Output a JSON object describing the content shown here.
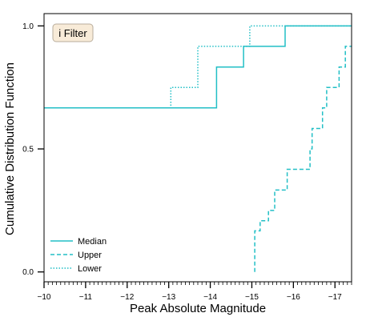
{
  "chart_data": {
    "type": "line",
    "step": true,
    "xlabel": "Peak Absolute Magnitude",
    "ylabel": "Cumulative Distribution Function",
    "xlim": [
      -10,
      -17.4
    ],
    "ylim": [
      -0.04,
      1.05
    ],
    "x_inverted": true,
    "xticks": [
      -10,
      -11,
      -12,
      -13,
      -14,
      -15,
      -16,
      -17
    ],
    "xtick_labels": [
      "−10",
      "−11",
      "−12",
      "−13",
      "−14",
      "−15",
      "−16",
      "−17"
    ],
    "yticks": [
      0.0,
      0.5,
      1.0
    ],
    "ytick_labels": [
      "0.0",
      "0.5",
      "1.0"
    ],
    "grid": false,
    "legend_position": "lower-left",
    "annotation": "i Filter",
    "annotation_bg": "#f8ebd8",
    "annotation_border": "#b9ad9c",
    "color": "#22bfc6",
    "series": [
      {
        "name": "Median",
        "linestyle": "solid",
        "x": [
          -10.0,
          -14.15,
          -14.15,
          -14.8,
          -14.8,
          -15.8,
          -15.8,
          -17.4
        ],
        "y": [
          0.667,
          0.667,
          0.833,
          0.833,
          0.917,
          0.917,
          1.0,
          1.0
        ]
      },
      {
        "name": "Upper",
        "linestyle": "dashed",
        "x": [
          -15.07,
          -15.07,
          -15.2,
          -15.2,
          -15.4,
          -15.4,
          -15.55,
          -15.55,
          -15.85,
          -15.85,
          -16.4,
          -16.4,
          -16.45,
          -16.45,
          -16.7,
          -16.7,
          -16.8,
          -16.8,
          -17.1,
          -17.1,
          -17.25,
          -17.25,
          -17.4
        ],
        "y": [
          0.0,
          0.167,
          0.167,
          0.208,
          0.208,
          0.25,
          0.25,
          0.333,
          0.333,
          0.417,
          0.417,
          0.5,
          0.5,
          0.583,
          0.583,
          0.667,
          0.667,
          0.75,
          0.75,
          0.833,
          0.833,
          0.917,
          0.917
        ]
      },
      {
        "name": "Lower",
        "linestyle": "dotted",
        "x": [
          -10.0,
          -13.05,
          -13.05,
          -13.7,
          -13.7,
          -14.95,
          -14.95,
          -17.4
        ],
        "y": [
          0.667,
          0.667,
          0.75,
          0.75,
          0.917,
          0.917,
          1.0,
          1.0
        ]
      }
    ]
  }
}
